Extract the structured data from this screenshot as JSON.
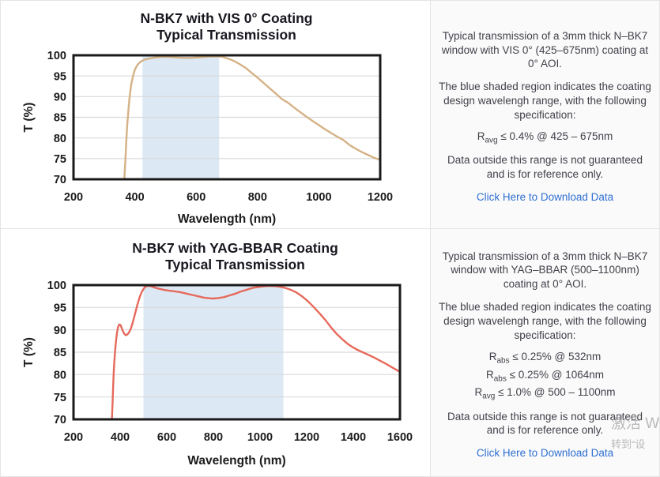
{
  "colors": {
    "link": "#2e6fd2",
    "frame": "#1a1a1a",
    "grid": "#d9d9d9",
    "vis_curve": "#d5b286",
    "yag_curve": "#e66a5c",
    "shade": "#dce8f4"
  },
  "chart_data": [
    {
      "type": "line",
      "title": "N-BK7 with VIS 0° Coating",
      "subtitle": "Typical Transmission",
      "xlabel": "Wavelength (nm)",
      "ylabel": "T (%)",
      "xlim": [
        200,
        1200
      ],
      "ylim": [
        70,
        100
      ],
      "xticks": [
        200,
        400,
        600,
        800,
        1000,
        1200
      ],
      "yticks": [
        70,
        75,
        80,
        85,
        90,
        95,
        100
      ],
      "grid": "horizontal",
      "legend": "none",
      "shaded_region": {
        "x_start": 425,
        "x_end": 675,
        "color": "#dce8f4",
        "label": "coating design wavelength range 425-675nm"
      },
      "series": [
        {
          "name": "typical transmission",
          "color": "#d5b286",
          "x": [
            363,
            366,
            369,
            372,
            375,
            379,
            383,
            388,
            394,
            400,
            407,
            415,
            424,
            434,
            446,
            460,
            476,
            494,
            512,
            530,
            550,
            570,
            590,
            610,
            630,
            648,
            662,
            674,
            686,
            700,
            715,
            730,
            745,
            762,
            780,
            800,
            820,
            840,
            860,
            880,
            900,
            920,
            940,
            960,
            980,
            1000,
            1020,
            1040,
            1060,
            1080,
            1100,
            1120,
            1140,
            1160,
            1180,
            1200
          ],
          "y": [
            67,
            70.5,
            74.5,
            79,
            83,
            86.8,
            90,
            92.8,
            95,
            96.5,
            97.5,
            98.2,
            98.7,
            99.0,
            99.2,
            99.4,
            99.55,
            99.65,
            99.6,
            99.5,
            99.4,
            99.35,
            99.4,
            99.5,
            99.6,
            99.7,
            99.72,
            99.7,
            99.6,
            99.3,
            98.9,
            98.35,
            97.7,
            96.9,
            95.8,
            94.6,
            93.3,
            92.0,
            90.7,
            89.4,
            88.5,
            87.3,
            86.2,
            85.1,
            84.1,
            83.1,
            82.1,
            81.2,
            80.3,
            79.5,
            78.3,
            77.4,
            76.6,
            75.9,
            75.2,
            74.7
          ]
        }
      ]
    },
    {
      "type": "line",
      "title": "N-BK7 with YAG-BBAR Coating",
      "subtitle": "Typical Transmission",
      "xlabel": "Wavelength (nm)",
      "ylabel": "T (%)",
      "xlim": [
        200,
        1600
      ],
      "ylim": [
        70,
        100
      ],
      "xticks": [
        200,
        400,
        600,
        800,
        1000,
        1200,
        1400,
        1600
      ],
      "yticks": [
        70,
        75,
        80,
        85,
        90,
        95,
        100
      ],
      "grid": "horizontal",
      "legend": "none",
      "shaded_region": {
        "x_start": 500,
        "x_end": 1100,
        "color": "#dce8f4",
        "label": "coating design wavelength range 500-1100nm"
      },
      "series": [
        {
          "name": "typical transmission",
          "color": "#e66a5c",
          "x": [
            362,
            365,
            368,
            371,
            374,
            378,
            382,
            386,
            391,
            396,
            401,
            406,
            412,
            418,
            425,
            432,
            440,
            448,
            456,
            465,
            474,
            483,
            492,
            501,
            510,
            519,
            528,
            540,
            555,
            570,
            590,
            610,
            635,
            660,
            685,
            710,
            735,
            760,
            785,
            800,
            820,
            845,
            870,
            895,
            920,
            945,
            970,
            995,
            1020,
            1045,
            1070,
            1090,
            1110,
            1130,
            1155,
            1180,
            1205,
            1230,
            1255,
            1280,
            1305,
            1330,
            1355,
            1375,
            1395,
            1415,
            1440,
            1465,
            1490,
            1515,
            1540,
            1570,
            1600
          ],
          "y": [
            67,
            70.5,
            74.5,
            78.5,
            82,
            85,
            87.4,
            89.2,
            90.6,
            91.2,
            91.1,
            90.5,
            89.7,
            89.1,
            88.8,
            89.0,
            89.6,
            90.6,
            92,
            93.8,
            95.6,
            97.2,
            98.4,
            99.2,
            99.7,
            99.85,
            99.8,
            99.6,
            99.35,
            99.15,
            98.9,
            98.75,
            98.6,
            98.4,
            98.1,
            97.8,
            97.5,
            97.2,
            97.05,
            97.0,
            97.1,
            97.3,
            97.7,
            98.1,
            98.6,
            99.0,
            99.4,
            99.6,
            99.75,
            99.8,
            99.75,
            99.6,
            99.35,
            99.0,
            98.4,
            97.5,
            96.4,
            95.1,
            93.7,
            92.2,
            90.5,
            89.0,
            87.8,
            86.9,
            86.2,
            85.6,
            85.0,
            84.4,
            83.8,
            83.1,
            82.4,
            81.5,
            80.6
          ]
        }
      ]
    }
  ],
  "info_panels": [
    {
      "description": "Typical transmission of a 3mm thick N–BK7 window with VIS 0° (425–675nm) coating at 0° AOI.",
      "shaded_note": "The blue shaded region indicates the coating design wavelengh range, with the following specification:",
      "specs": [
        {
          "base": "R",
          "sub": "avg",
          "rest": " ≤ 0.4% @ 425 – 675nm"
        }
      ],
      "disclaimer": "Data outside this range is not guaranteed and is for reference only.",
      "link_label": "Click Here to Download Data"
    },
    {
      "description": "Typical transmission of a 3mm thick N–BK7 window with YAG–BBAR (500–1100nm) coating at 0° AOI.",
      "shaded_note": "The blue shaded region indicates the coating design wavelengh range, with the following specification:",
      "specs": [
        {
          "base": "R",
          "sub": "abs",
          "rest": " ≤ 0.25% @ 532nm"
        },
        {
          "base": "R",
          "sub": "abs",
          "rest": " ≤ 0.25% @ 1064nm"
        },
        {
          "base": "R",
          "sub": "avg",
          "rest": " ≤ 1.0% @ 500 – 1100nm"
        }
      ],
      "disclaimer": "Data outside this range is not guaranteed and is for reference only.",
      "link_label": "Click Here to Download Data"
    }
  ],
  "watermark": {
    "line1": "激活 W",
    "line2": "转到“设"
  }
}
